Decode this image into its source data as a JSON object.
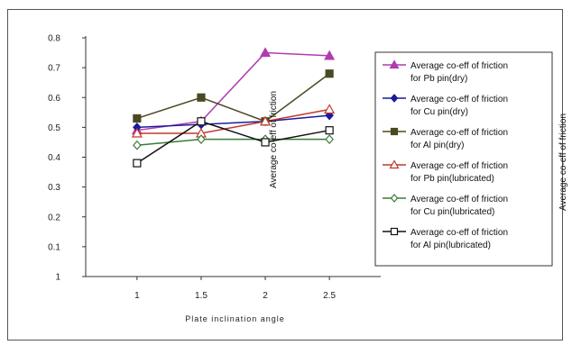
{
  "chart_data": {
    "type": "line",
    "x": [
      1,
      1.5,
      2,
      2.5
    ],
    "xlabel": "Plate inclination angle",
    "ylabel": "",
    "ylim": [
      0,
      0.8
    ],
    "y_ticks": [
      "1",
      "0.1",
      "0.2",
      "0.3",
      "0.4",
      "0.5",
      "0.6",
      "0.7",
      "0.8"
    ],
    "x_ticks": [
      "1",
      "1.5",
      "2",
      "2.5"
    ],
    "grid": false,
    "legend_position": "right",
    "overlay_labels": [
      "Average co-eff of friction",
      "Average co-eff of friction"
    ],
    "series": [
      {
        "name": "Average co-eff of friction for Pb pin(dry)",
        "color": "#b03cb0",
        "marker": "triangle-filled",
        "values": [
          0.49,
          0.52,
          0.75,
          0.74
        ]
      },
      {
        "name": "Average co-eff of friction for Cu pin(dry)",
        "color": "#1a1a9c",
        "marker": "diamond-filled",
        "values": [
          0.5,
          0.51,
          0.52,
          0.54
        ]
      },
      {
        "name": "Average co-eff of friction for Al pin(dry)",
        "color": "#4a4a22",
        "marker": "square-filled",
        "values": [
          0.53,
          0.6,
          0.52,
          0.68
        ]
      },
      {
        "name": "Average co-eff of friction for Pb pin(lubricated)",
        "color": "#c0392b",
        "marker": "triangle-open",
        "values": [
          0.48,
          0.48,
          0.52,
          0.56
        ]
      },
      {
        "name": "Average co-eff of friction for Cu pin(lubricated)",
        "color": "#3a7a3a",
        "marker": "diamond-open",
        "values": [
          0.44,
          0.46,
          0.46,
          0.46
        ]
      },
      {
        "name": "Average co-eff of friction for Al pin(lubricated)",
        "color": "#111111",
        "marker": "square-open",
        "values": [
          0.38,
          0.52,
          0.45,
          0.49
        ]
      }
    ]
  }
}
